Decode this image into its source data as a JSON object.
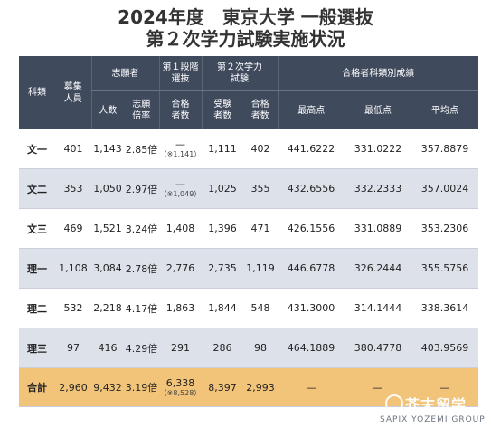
{
  "title": {
    "line1": "2024年度　東京大学 一般選抜",
    "line2": "第２次学力試験実施状況"
  },
  "headers": {
    "category": "科類",
    "quota": "募集\n人員",
    "applicants_group": "志願者",
    "applicants_count": "人数",
    "applicants_ratio": "志願\n倍率",
    "stage1_group": "第１段階\n選抜",
    "stage1_passed": "合格\n者数",
    "stage2_group": "第２次学力\n試験",
    "stage2_examinees": "受験\n者数",
    "stage2_passed": "合格\n者数",
    "scores_group": "合格者科類別成績",
    "score_max": "最高点",
    "score_min": "最低点",
    "score_avg": "平均点"
  },
  "rows": [
    {
      "category": "文一",
      "quota": "401",
      "applicants": "1,143",
      "ratio": "2.85倍",
      "stage1_main": "—",
      "stage1_sub": "（※1,141）",
      "examinees": "1,111",
      "passed": "402",
      "max": "441.6222",
      "min": "331.0222",
      "avg": "357.8879"
    },
    {
      "category": "文二",
      "quota": "353",
      "applicants": "1,050",
      "ratio": "2.97倍",
      "stage1_main": "—",
      "stage1_sub": "（※1,049）",
      "examinees": "1,025",
      "passed": "355",
      "max": "432.6556",
      "min": "332.2333",
      "avg": "357.0024"
    },
    {
      "category": "文三",
      "quota": "469",
      "applicants": "1,521",
      "ratio": "3.24倍",
      "stage1_main": "1,408",
      "stage1_sub": "",
      "examinees": "1,396",
      "passed": "471",
      "max": "426.1556",
      "min": "331.0889",
      "avg": "353.2306"
    },
    {
      "category": "理一",
      "quota": "1,108",
      "applicants": "3,084",
      "ratio": "2.78倍",
      "stage1_main": "2,776",
      "stage1_sub": "",
      "examinees": "2,735",
      "passed": "1,119",
      "max": "446.6778",
      "min": "326.2444",
      "avg": "355.5756"
    },
    {
      "category": "理二",
      "quota": "532",
      "applicants": "2,218",
      "ratio": "4.17倍",
      "stage1_main": "1,863",
      "stage1_sub": "",
      "examinees": "1,844",
      "passed": "548",
      "max": "431.3000",
      "min": "314.1444",
      "avg": "338.3614"
    },
    {
      "category": "理三",
      "quota": "97",
      "applicants": "416",
      "ratio": "4.29倍",
      "stage1_main": "291",
      "stage1_sub": "",
      "examinees": "286",
      "passed": "98",
      "max": "464.1889",
      "min": "380.4778",
      "avg": "403.9569"
    }
  ],
  "total": {
    "category": "合計",
    "quota": "2,960",
    "applicants": "9,432",
    "ratio": "3.19倍",
    "stage1_main": "6,338",
    "stage1_sub": "（※8,528）",
    "examinees": "8,397",
    "passed": "2,993",
    "max": "—",
    "min": "—",
    "avg": "—"
  },
  "watermark": {
    "cn": "芥末留学",
    "en": "SAPIX YOZEMI GROUP"
  },
  "colors": {
    "header_bg": "#3f4a5c",
    "band_blue": "#dde1ea",
    "total_bg": "#f2c47a"
  }
}
